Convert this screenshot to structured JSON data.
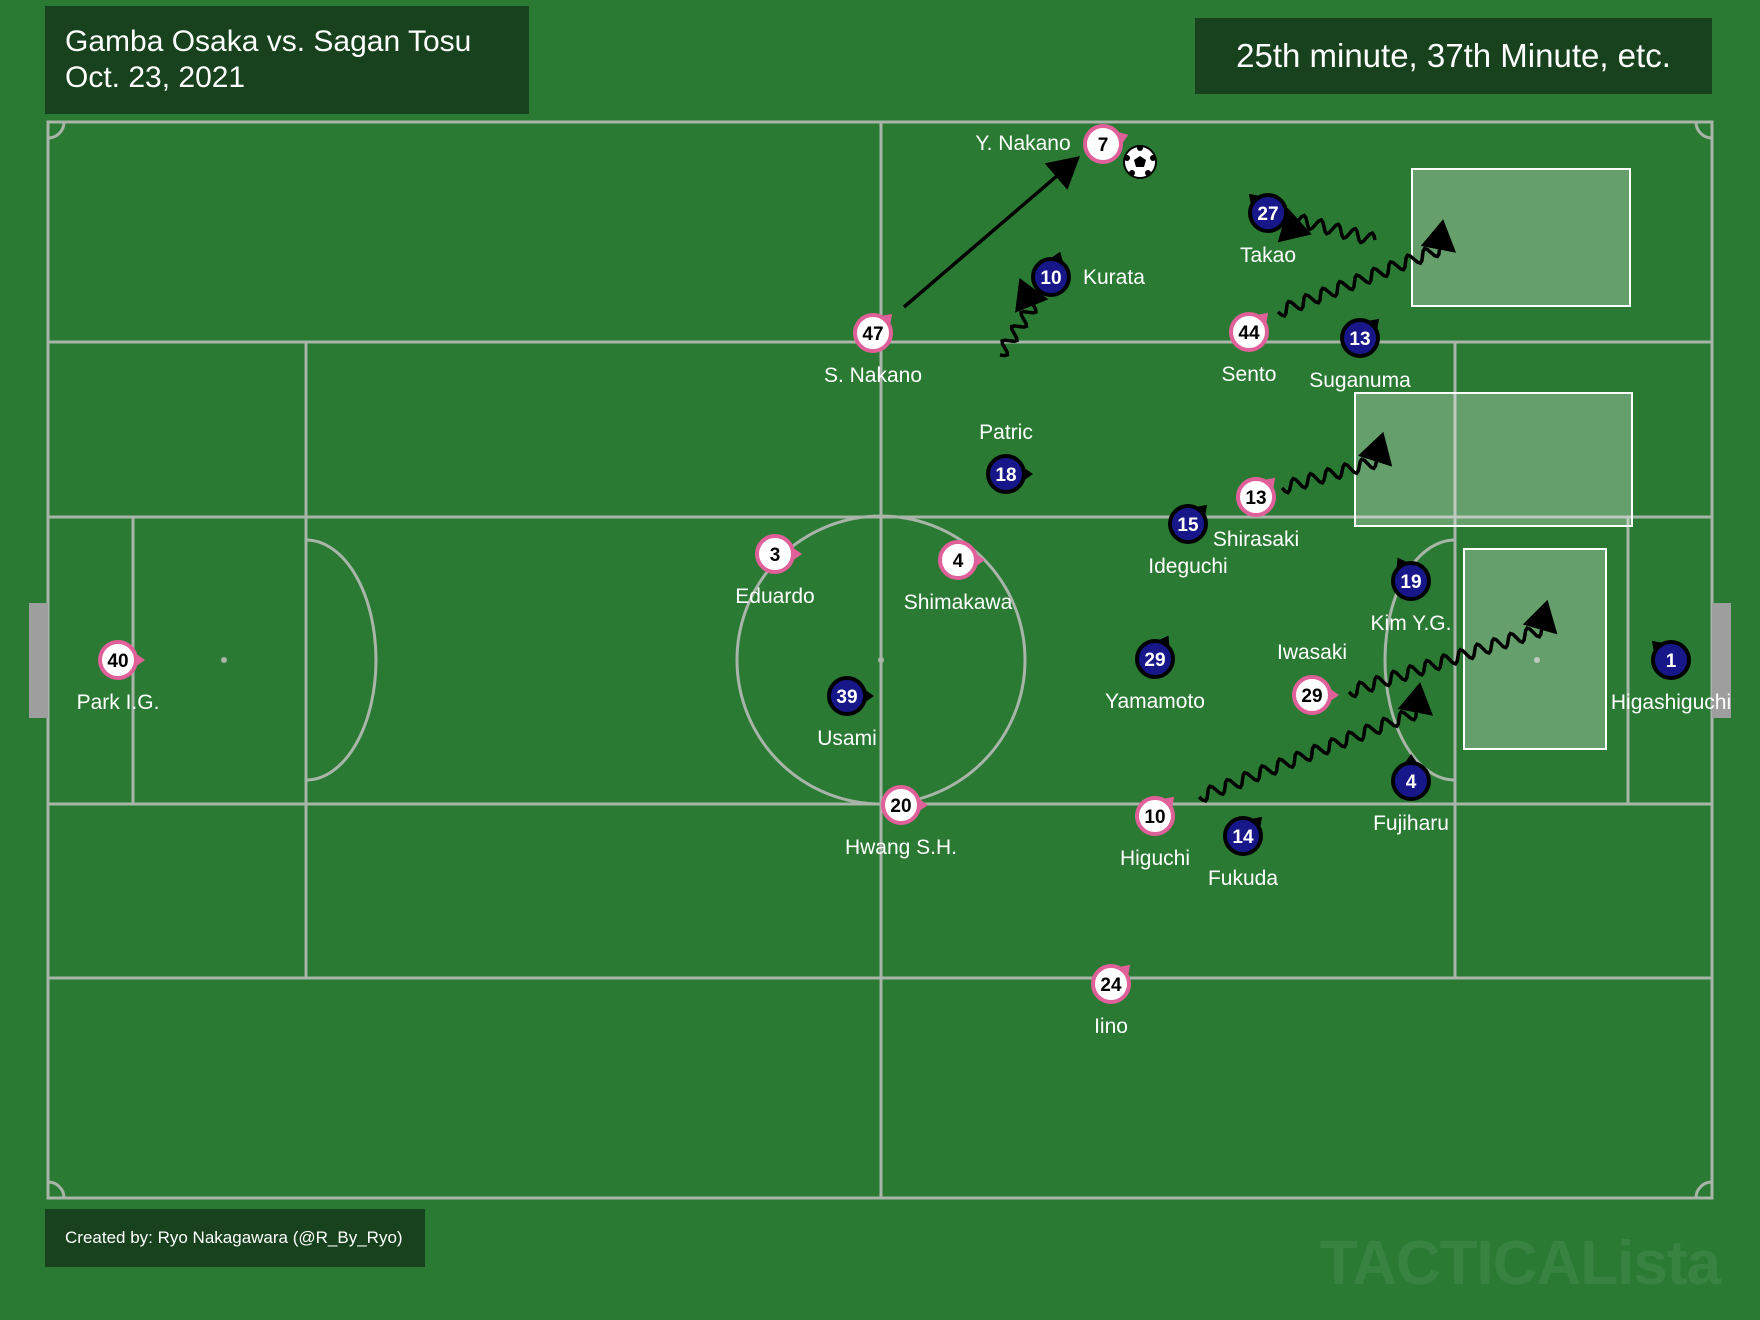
{
  "header": {
    "match": "Gamba Osaka vs. Sagan Tosu",
    "date": "Oct. 23, 2021",
    "minute": "25th minute, 37th Minute, etc."
  },
  "footer": {
    "credit": "Created by: Ryo Nakagawara (@R_By_Ryo)"
  },
  "watermark": "TACTICALista",
  "colors": {
    "pitch": "#2a7a34",
    "lines": "#a8b5a8",
    "panel": "#17421d",
    "home_accent": "#e0609a",
    "away_fill": "#17178a"
  },
  "players": [
    {
      "team": "home",
      "number": "7",
      "name": "Y. Nakano"
    },
    {
      "team": "home",
      "number": "47",
      "name": "S. Nakano"
    },
    {
      "team": "home",
      "number": "44",
      "name": "Sento"
    },
    {
      "team": "home",
      "number": "13",
      "name": "Shirasaki"
    },
    {
      "team": "home",
      "number": "3",
      "name": "Eduardo"
    },
    {
      "team": "home",
      "number": "4",
      "name": "Shimakawa"
    },
    {
      "team": "home",
      "number": "40",
      "name": "Park I.G."
    },
    {
      "team": "home",
      "number": "29",
      "name": "Iwasaki"
    },
    {
      "team": "home",
      "number": "20",
      "name": "Hwang S.H."
    },
    {
      "team": "home",
      "number": "10",
      "name": "Higuchi"
    },
    {
      "team": "home",
      "number": "24",
      "name": "Iino"
    },
    {
      "team": "away",
      "number": "27",
      "name": "Takao"
    },
    {
      "team": "away",
      "number": "10",
      "name": "Kurata"
    },
    {
      "team": "away",
      "number": "13",
      "name": "Suganuma"
    },
    {
      "team": "away",
      "number": "18",
      "name": "Patric"
    },
    {
      "team": "away",
      "number": "15",
      "name": "Ideguchi"
    },
    {
      "team": "away",
      "number": "19",
      "name": "Kim Y.G."
    },
    {
      "team": "away",
      "number": "29",
      "name": "Yamamoto"
    },
    {
      "team": "away",
      "number": "39",
      "name": "Usami"
    },
    {
      "team": "away",
      "number": "1",
      "name": "Higashiguchi"
    },
    {
      "team": "away",
      "number": "4",
      "name": "Fujiharu"
    },
    {
      "team": "away",
      "number": "14",
      "name": "Fukuda"
    }
  ]
}
